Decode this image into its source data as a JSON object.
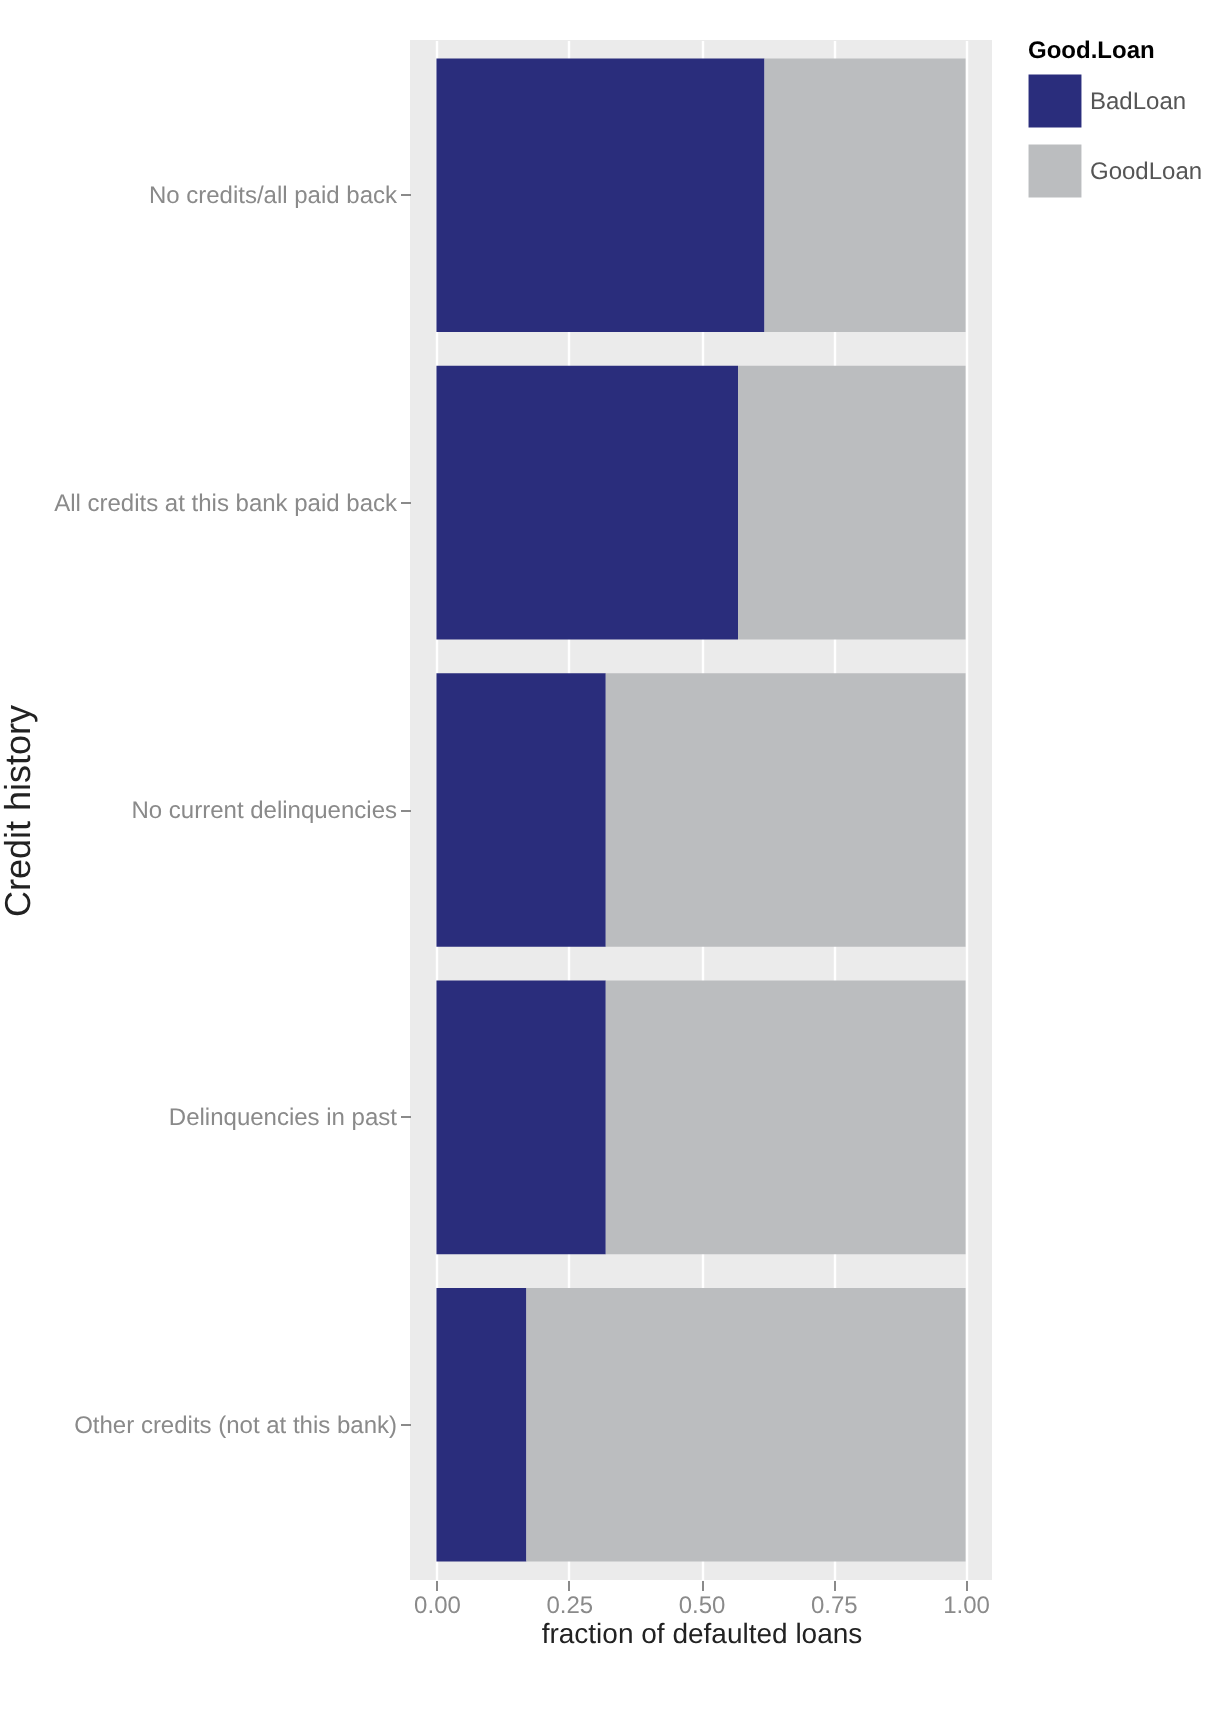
{
  "chart_data": {
    "type": "bar",
    "orientation": "horizontal",
    "stacked": true,
    "xlabel": "fraction of defaulted loans",
    "ylabel": "Credit history",
    "legend_title": "Good.Loan",
    "categories": [
      "No credits/all paid back",
      "All credits at this bank paid back",
      "No current delinquencies",
      "Delinquencies in past",
      "Other credits (not at this bank)"
    ],
    "series": [
      {
        "name": "BadLoan",
        "color": "#2a2d7c",
        "values": [
          0.62,
          0.57,
          0.32,
          0.32,
          0.17
        ]
      },
      {
        "name": "GoodLoan",
        "color": "#bbbdbf",
        "values": [
          0.38,
          0.43,
          0.68,
          0.68,
          0.83
        ]
      }
    ],
    "xlim": [
      -0.05,
      1.05
    ],
    "xticks": [
      {
        "value": 0,
        "label": "0.00"
      },
      {
        "value": 0.25,
        "label": "0.25"
      },
      {
        "value": 0.5,
        "label": "0.50"
      },
      {
        "value": 0.75,
        "label": "0.75"
      },
      {
        "value": 1,
        "label": "1.00"
      }
    ],
    "grid": "x",
    "legend": "right"
  }
}
